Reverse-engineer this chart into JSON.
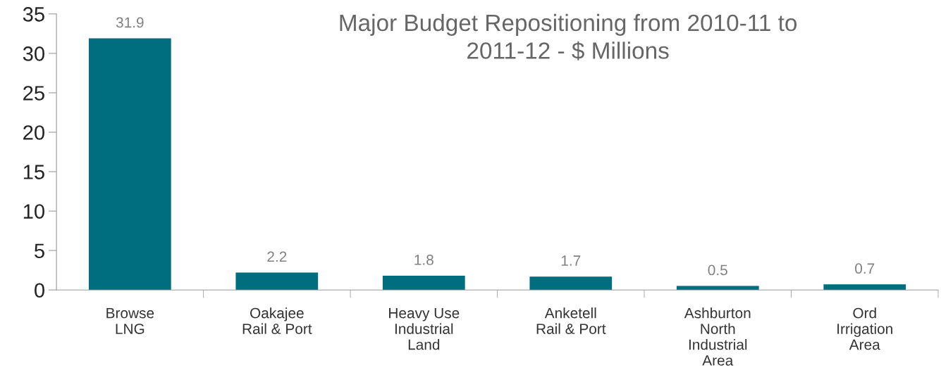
{
  "chart_data": {
    "type": "bar",
    "title": "Major Budget Repositioning from 2010-11 to\n2011-12 - $ Millions",
    "categories": [
      "Browse\nLNG",
      "Oakajee\nRail & Port",
      "Heavy Use\nIndustrial\nLand",
      "Anketell\nRail & Port",
      "Ashburton\nNorth\nIndustrial\nArea",
      "Ord\nIrrigation\nArea"
    ],
    "values": [
      31.9,
      2.2,
      1.8,
      1.7,
      0.5,
      0.7
    ],
    "color": "#006e7f",
    "ylim": [
      0,
      35
    ],
    "yticks": [
      0,
      5,
      10,
      15,
      20,
      25,
      30,
      35
    ],
    "data_labels": true,
    "grid": false
  }
}
